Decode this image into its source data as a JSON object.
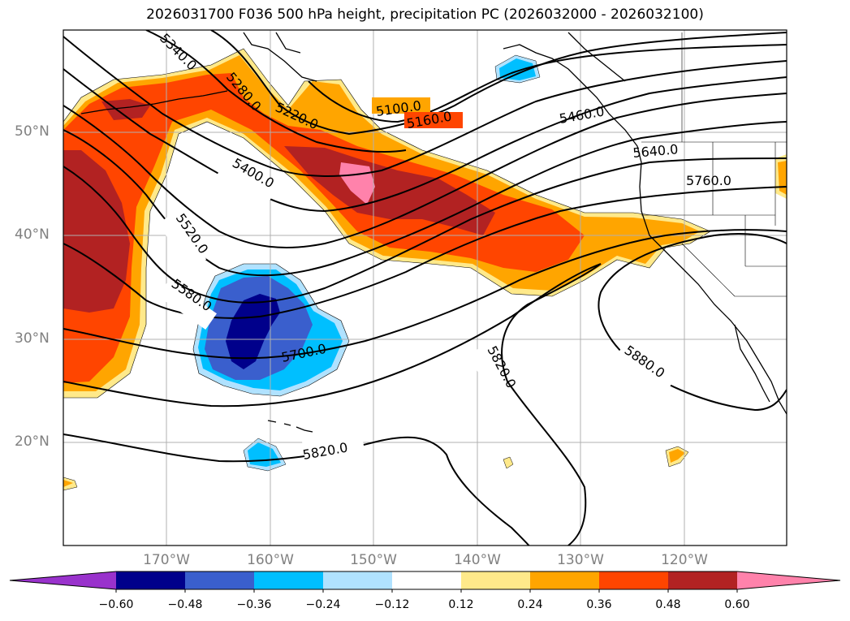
{
  "title": "2026031700 F036 500 hPa height, precipitation PC (2026032000 - 2026032100)",
  "lat_ticks": [
    "50°N",
    "40°N",
    "30°N",
    "20°N"
  ],
  "lon_ticks": [
    "170°W",
    "160°W",
    "150°W",
    "140°W",
    "130°W",
    "120°W"
  ],
  "colorbar": {
    "ticks": [
      "−0.60",
      "−0.48",
      "−0.36",
      "−0.24",
      "−0.12",
      "0.12",
      "0.24",
      "0.36",
      "0.48",
      "0.60"
    ],
    "colors": [
      "#9932cc",
      "#00008b",
      "#3a5fcd",
      "#00bfff",
      "#b0e2ff",
      "#ffffff",
      "#ffe98a",
      "#ffa500",
      "#ff4500",
      "#b22222",
      "#ff82ab"
    ]
  },
  "contour_labels": [
    "5100.0",
    "5160.0",
    "5220.0",
    "5280.0",
    "5340.0",
    "5400.0",
    "5460.0",
    "5520.0",
    "5580.0",
    "5640.0",
    "5700.0",
    "5760.0",
    "5820.0",
    "5820.0",
    "5880.0"
  ]
}
